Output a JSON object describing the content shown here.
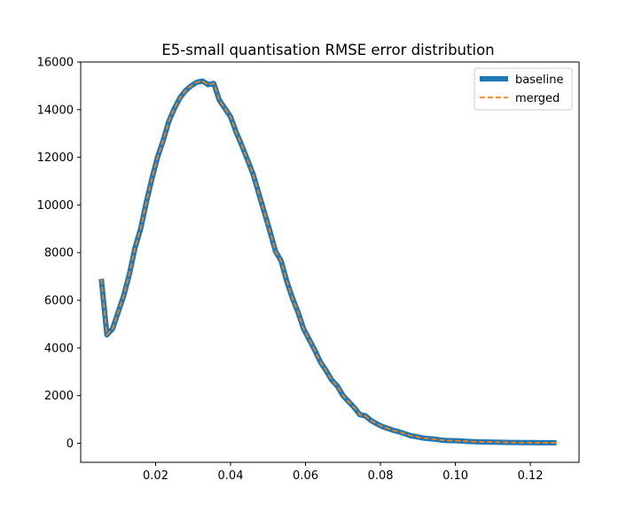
{
  "chart_data": {
    "type": "line",
    "title": "E5-small quantisation RMSE error distribution",
    "xlabel": "",
    "ylabel": "",
    "xlim": [
      0.0,
      0.133
    ],
    "ylim": [
      -800,
      16000
    ],
    "x_ticks": [
      0.02,
      0.04,
      0.06,
      0.08,
      0.1,
      0.12
    ],
    "x_tick_labels": [
      "0.02",
      "0.04",
      "0.06",
      "0.08",
      "0.10",
      "0.12"
    ],
    "y_ticks": [
      0,
      2000,
      4000,
      6000,
      8000,
      10000,
      12000,
      14000,
      16000
    ],
    "y_tick_labels": [
      "0",
      "2000",
      "4000",
      "6000",
      "8000",
      "10000",
      "12000",
      "14000",
      "16000"
    ],
    "grid": false,
    "legend_position": "top-right",
    "x": [
      0.0055,
      0.007,
      0.0085,
      0.01,
      0.0115,
      0.013,
      0.0145,
      0.016,
      0.0175,
      0.019,
      0.0205,
      0.022,
      0.0235,
      0.025,
      0.0265,
      0.028,
      0.0295,
      0.031,
      0.0325,
      0.034,
      0.0355,
      0.037,
      0.0385,
      0.04,
      0.0415,
      0.043,
      0.0445,
      0.046,
      0.0475,
      0.049,
      0.0505,
      0.052,
      0.0535,
      0.055,
      0.0565,
      0.058,
      0.0595,
      0.061,
      0.0625,
      0.064,
      0.0655,
      0.067,
      0.0685,
      0.07,
      0.0715,
      0.073,
      0.0745,
      0.076,
      0.0775,
      0.079,
      0.0805,
      0.082,
      0.0835,
      0.085,
      0.0865,
      0.088,
      0.0895,
      0.091,
      0.0925,
      0.094,
      0.0955,
      0.097,
      0.0985,
      0.1,
      0.1015,
      0.103,
      0.1045,
      0.106,
      0.1075,
      0.109,
      0.1105,
      0.112,
      0.1135,
      0.115,
      0.1165,
      0.118,
      0.1195,
      0.121,
      0.1225,
      0.124,
      0.1255,
      0.127
    ],
    "series": [
      {
        "name": "baseline",
        "color": "#1f77b4",
        "style": "solid",
        "values": [
          6900,
          4550,
          4800,
          5500,
          6200,
          7100,
          8200,
          9000,
          10100,
          11100,
          12000,
          12700,
          13500,
          14050,
          14500,
          14800,
          15000,
          15150,
          15200,
          15050,
          15100,
          14400,
          14050,
          13700,
          13050,
          12500,
          11900,
          11300,
          10500,
          9700,
          8900,
          8050,
          7650,
          6800,
          6100,
          5500,
          4800,
          4350,
          3900,
          3400,
          3050,
          2650,
          2400,
          2000,
          1750,
          1500,
          1200,
          1150,
          950,
          820,
          700,
          620,
          540,
          480,
          400,
          320,
          280,
          230,
          200,
          180,
          150,
          120,
          110,
          105,
          95,
          80,
          70,
          60,
          55,
          50,
          45,
          40,
          35,
          32,
          30,
          28,
          26,
          25,
          24,
          23,
          22,
          22
        ]
      },
      {
        "name": "merged",
        "color": "#ff7f0e",
        "style": "dashed",
        "values": [
          6900,
          4550,
          4800,
          5500,
          6200,
          7100,
          8200,
          9000,
          10100,
          11100,
          12000,
          12700,
          13500,
          14050,
          14500,
          14800,
          15000,
          15150,
          15200,
          15050,
          15100,
          14400,
          14050,
          13700,
          13050,
          12500,
          11900,
          11300,
          10500,
          9700,
          8900,
          8050,
          7650,
          6800,
          6100,
          5500,
          4800,
          4350,
          3900,
          3400,
          3050,
          2650,
          2400,
          2000,
          1750,
          1500,
          1200,
          1150,
          950,
          820,
          700,
          620,
          540,
          480,
          400,
          320,
          280,
          230,
          200,
          180,
          150,
          120,
          110,
          105,
          95,
          80,
          70,
          60,
          55,
          50,
          45,
          40,
          35,
          32,
          30,
          28,
          26,
          25,
          24,
          23,
          22,
          22
        ]
      }
    ]
  }
}
